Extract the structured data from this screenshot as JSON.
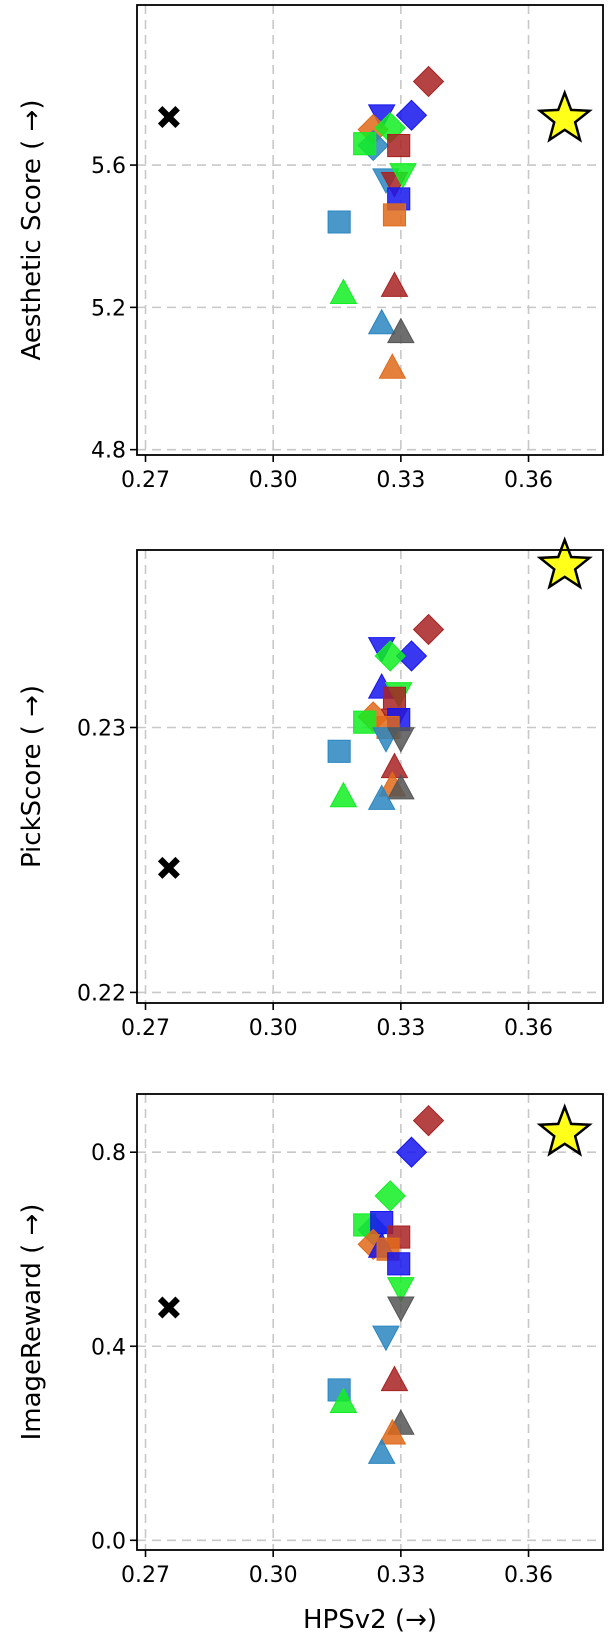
{
  "colors": {
    "red": "#a82222",
    "blue": "#1515ee",
    "green": "#11ee22",
    "orange": "#e06a1a",
    "steelblue": "#2a86c0",
    "gray": "#555555",
    "star_fill": "#ffff1a",
    "cross": "#000000"
  },
  "chart_data": [
    {
      "type": "scatter",
      "ylabel": "Aesthetic Score ( →)",
      "xlabel": "",
      "xlim": [
        0.268,
        0.3775
      ],
      "ylim": [
        4.785,
        6.05
      ],
      "xticks": [
        0.27,
        0.3,
        0.33,
        0.36
      ],
      "xtick_labels": [
        "0.27",
        "0.30",
        "0.33",
        "0.36"
      ],
      "yticks": [
        4.8,
        5.2,
        5.6
      ],
      "ytick_labels": [
        "4.8",
        "5.2",
        "5.6"
      ],
      "grid": true,
      "points": [
        {
          "x": 0.2755,
          "y": 5.735,
          "shape": "cross",
          "color": "cross"
        },
        {
          "x": 0.3685,
          "y": 5.73,
          "shape": "star",
          "color": "star_fill"
        },
        {
          "x": 0.3365,
          "y": 5.835,
          "shape": "diamond",
          "color": "red"
        },
        {
          "x": 0.3325,
          "y": 5.74,
          "shape": "diamond",
          "color": "blue"
        },
        {
          "x": 0.3255,
          "y": 5.74,
          "shape": "tri_down",
          "color": "blue"
        },
        {
          "x": 0.3235,
          "y": 5.7,
          "shape": "diamond",
          "color": "orange"
        },
        {
          "x": 0.3275,
          "y": 5.705,
          "shape": "diamond",
          "color": "green"
        },
        {
          "x": 0.3235,
          "y": 5.655,
          "shape": "diamond",
          "color": "steelblue"
        },
        {
          "x": 0.3215,
          "y": 5.66,
          "shape": "square",
          "color": "green"
        },
        {
          "x": 0.3295,
          "y": 5.655,
          "shape": "square",
          "color": "red"
        },
        {
          "x": 0.3265,
          "y": 5.56,
          "shape": "tri_down",
          "color": "steelblue"
        },
        {
          "x": 0.3285,
          "y": 5.55,
          "shape": "tri_down",
          "color": "red"
        },
        {
          "x": 0.3305,
          "y": 5.575,
          "shape": "tri_down",
          "color": "green"
        },
        {
          "x": 0.3295,
          "y": 5.505,
          "shape": "square",
          "color": "blue"
        },
        {
          "x": 0.3285,
          "y": 5.46,
          "shape": "square",
          "color": "orange"
        },
        {
          "x": 0.3155,
          "y": 5.44,
          "shape": "square",
          "color": "steelblue"
        },
        {
          "x": 0.3165,
          "y": 5.24,
          "shape": "tri_up",
          "color": "green"
        },
        {
          "x": 0.3285,
          "y": 5.26,
          "shape": "tri_up",
          "color": "red"
        },
        {
          "x": 0.3255,
          "y": 5.155,
          "shape": "tri_up",
          "color": "steelblue"
        },
        {
          "x": 0.33,
          "y": 5.13,
          "shape": "tri_up",
          "color": "gray"
        },
        {
          "x": 0.328,
          "y": 5.03,
          "shape": "tri_up",
          "color": "orange"
        }
      ]
    },
    {
      "type": "scatter",
      "ylabel": "PickScore ( →)",
      "xlabel": "",
      "xlim": [
        0.268,
        0.3775
      ],
      "ylim": [
        0.2196,
        0.2367
      ],
      "xticks": [
        0.27,
        0.3,
        0.33,
        0.36
      ],
      "xtick_labels": [
        "0.27",
        "0.30",
        "0.33",
        "0.36"
      ],
      "yticks": [
        0.22,
        0.23
      ],
      "ytick_labels": [
        "0.22",
        "0.23"
      ],
      "grid": true,
      "points": [
        {
          "x": 0.2755,
          "y": 0.2247,
          "shape": "cross",
          "color": "cross"
        },
        {
          "x": 0.3685,
          "y": 0.2361,
          "shape": "star",
          "color": "star_fill"
        },
        {
          "x": 0.3365,
          "y": 0.2337,
          "shape": "diamond",
          "color": "red"
        },
        {
          "x": 0.3255,
          "y": 0.233,
          "shape": "tri_down",
          "color": "blue"
        },
        {
          "x": 0.3325,
          "y": 0.2327,
          "shape": "diamond",
          "color": "blue"
        },
        {
          "x": 0.3275,
          "y": 0.2327,
          "shape": "diamond",
          "color": "green"
        },
        {
          "x": 0.3255,
          "y": 0.2315,
          "shape": "tri_up",
          "color": "blue"
        },
        {
          "x": 0.3295,
          "y": 0.2313,
          "shape": "tri_down",
          "color": "green"
        },
        {
          "x": 0.3285,
          "y": 0.2311,
          "shape": "square",
          "color": "red"
        },
        {
          "x": 0.3235,
          "y": 0.2304,
          "shape": "diamond",
          "color": "orange"
        },
        {
          "x": 0.3215,
          "y": 0.2302,
          "shape": "square",
          "color": "green"
        },
        {
          "x": 0.3285,
          "y": 0.2303,
          "shape": "tri_down",
          "color": "red"
        },
        {
          "x": 0.3295,
          "y": 0.2303,
          "shape": "square",
          "color": "blue"
        },
        {
          "x": 0.327,
          "y": 0.23,
          "shape": "square",
          "color": "orange"
        },
        {
          "x": 0.3265,
          "y": 0.2296,
          "shape": "tri_down",
          "color": "steelblue"
        },
        {
          "x": 0.33,
          "y": 0.2296,
          "shape": "tri_down",
          "color": "gray"
        },
        {
          "x": 0.3155,
          "y": 0.2291,
          "shape": "square",
          "color": "steelblue"
        },
        {
          "x": 0.3285,
          "y": 0.2285,
          "shape": "tri_up",
          "color": "red"
        },
        {
          "x": 0.3165,
          "y": 0.2274,
          "shape": "tri_up",
          "color": "green"
        },
        {
          "x": 0.328,
          "y": 0.2278,
          "shape": "tri_up",
          "color": "orange"
        },
        {
          "x": 0.33,
          "y": 0.2277,
          "shape": "tri_up",
          "color": "gray"
        },
        {
          "x": 0.3255,
          "y": 0.2273,
          "shape": "tri_up",
          "color": "steelblue"
        }
      ]
    },
    {
      "type": "scatter",
      "ylabel": "ImageReward ( →)",
      "xlabel": "HPSv2 (→)",
      "xlim": [
        0.268,
        0.3775
      ],
      "ylim": [
        -0.02,
        0.92
      ],
      "xticks": [
        0.27,
        0.3,
        0.33,
        0.36
      ],
      "xtick_labels": [
        "0.27",
        "0.30",
        "0.33",
        "0.36"
      ],
      "yticks": [
        0.0,
        0.4,
        0.8
      ],
      "ytick_labels": [
        "0.0",
        "0.4",
        "0.8"
      ],
      "grid": true,
      "points": [
        {
          "x": 0.2755,
          "y": 0.48,
          "shape": "cross",
          "color": "cross"
        },
        {
          "x": 0.3685,
          "y": 0.84,
          "shape": "star",
          "color": "star_fill"
        },
        {
          "x": 0.3365,
          "y": 0.865,
          "shape": "diamond",
          "color": "red"
        },
        {
          "x": 0.3325,
          "y": 0.8,
          "shape": "diamond",
          "color": "blue"
        },
        {
          "x": 0.3275,
          "y": 0.71,
          "shape": "diamond",
          "color": "green"
        },
        {
          "x": 0.3235,
          "y": 0.64,
          "shape": "diamond",
          "color": "steelblue"
        },
        {
          "x": 0.3215,
          "y": 0.65,
          "shape": "square",
          "color": "green"
        },
        {
          "x": 0.3255,
          "y": 0.655,
          "shape": "square",
          "color": "blue"
        },
        {
          "x": 0.3295,
          "y": 0.625,
          "shape": "square",
          "color": "red"
        },
        {
          "x": 0.3235,
          "y": 0.61,
          "shape": "diamond",
          "color": "orange"
        },
        {
          "x": 0.3255,
          "y": 0.605,
          "shape": "tri_up",
          "color": "blue"
        },
        {
          "x": 0.327,
          "y": 0.6,
          "shape": "square",
          "color": "orange"
        },
        {
          "x": 0.3295,
          "y": 0.57,
          "shape": "square",
          "color": "blue"
        },
        {
          "x": 0.33,
          "y": 0.52,
          "shape": "tri_down",
          "color": "green"
        },
        {
          "x": 0.33,
          "y": 0.48,
          "shape": "tri_down",
          "color": "gray"
        },
        {
          "x": 0.3265,
          "y": 0.42,
          "shape": "tri_down",
          "color": "steelblue"
        },
        {
          "x": 0.3285,
          "y": 0.33,
          "shape": "tri_up",
          "color": "red"
        },
        {
          "x": 0.3155,
          "y": 0.31,
          "shape": "square",
          "color": "steelblue"
        },
        {
          "x": 0.3165,
          "y": 0.285,
          "shape": "tri_up",
          "color": "green"
        },
        {
          "x": 0.33,
          "y": 0.24,
          "shape": "tri_up",
          "color": "gray"
        },
        {
          "x": 0.328,
          "y": 0.22,
          "shape": "tri_up",
          "color": "orange"
        },
        {
          "x": 0.3255,
          "y": 0.18,
          "shape": "tri_up",
          "color": "steelblue"
        }
      ]
    }
  ]
}
